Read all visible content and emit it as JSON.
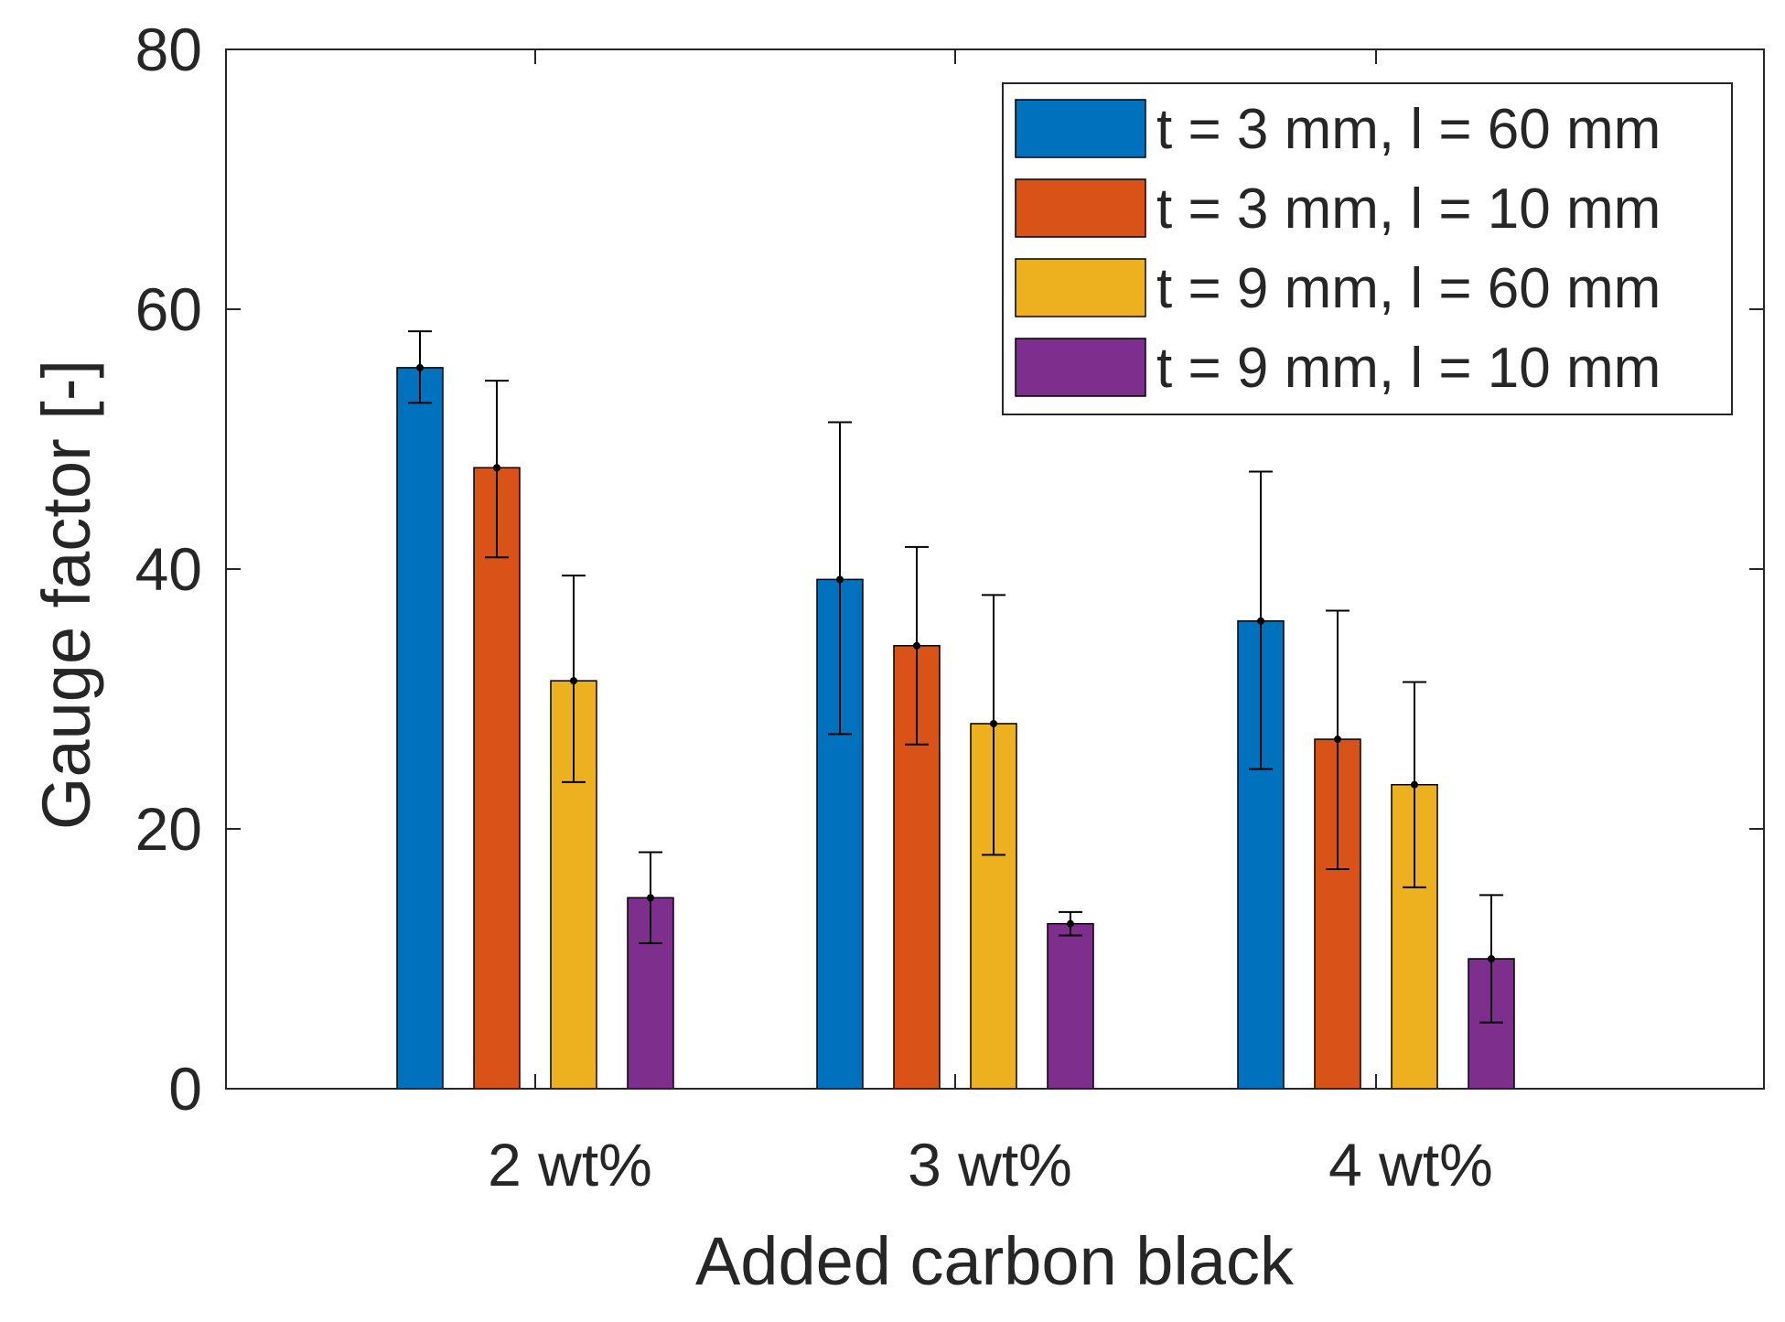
{
  "chart_data": {
    "type": "bar",
    "title": "",
    "xlabel": "Added carbon black",
    "ylabel": "Gauge factor [-]",
    "ylim": [
      0,
      80
    ],
    "yticks": [
      0,
      20,
      40,
      60,
      80
    ],
    "grid": false,
    "legend_position": "top-right",
    "categories": [
      "2 wt%",
      "3 wt%",
      "4 wt%"
    ],
    "series": [
      {
        "name": "t = 3 mm, l = 60 mm",
        "color": "#0072BD",
        "values": [
          55.5,
          39.2,
          36.0
        ],
        "error_low": [
          52.8,
          27.3,
          24.6
        ],
        "error_high": [
          58.3,
          51.3,
          47.5
        ]
      },
      {
        "name": "t = 3 mm, l = 10 mm",
        "color": "#D95319",
        "values": [
          47.8,
          34.1,
          26.9
        ],
        "error_low": [
          40.9,
          26.5,
          16.9
        ],
        "error_high": [
          54.5,
          41.7,
          36.8
        ]
      },
      {
        "name": "t = 9 mm, l = 60 mm",
        "color": "#EDB120",
        "values": [
          31.4,
          28.1,
          23.4
        ],
        "error_low": [
          23.6,
          18.0,
          15.5
        ],
        "error_high": [
          39.5,
          38.0,
          31.3
        ]
      },
      {
        "name": "t = 9 mm, l = 10 mm",
        "color": "#7E2F8E",
        "values": [
          14.7,
          12.7,
          10.0
        ],
        "error_low": [
          11.2,
          11.8,
          5.1
        ],
        "error_high": [
          18.2,
          13.6,
          14.9
        ]
      }
    ]
  }
}
